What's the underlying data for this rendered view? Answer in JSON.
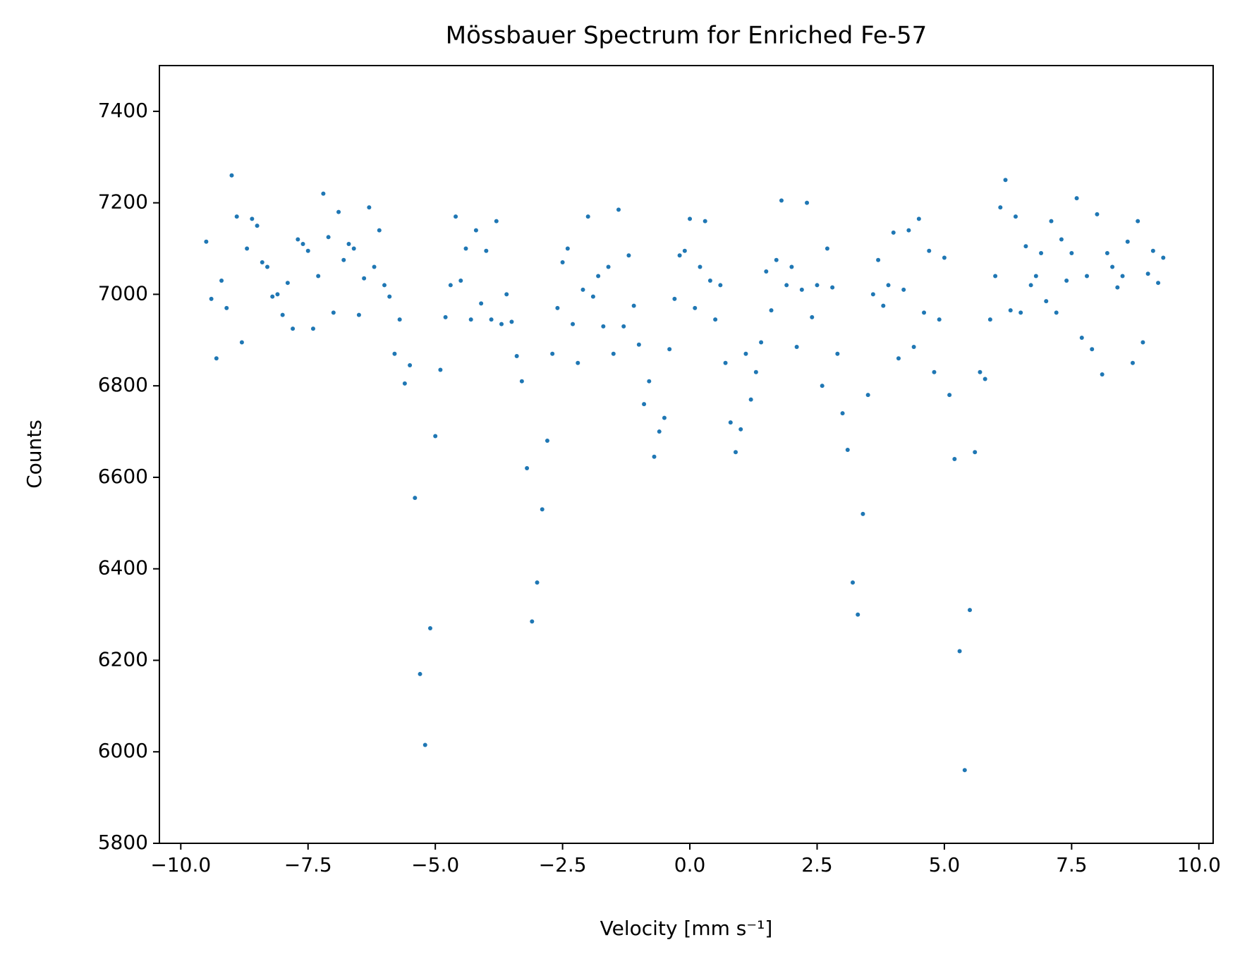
{
  "chart_data": {
    "type": "scatter",
    "title": "Mössbauer Spectrum for Enriched Fe-57",
    "x_label": "Velocity [mm s⁻¹]",
    "y_label": "Counts",
    "color": "#1f77b4",
    "xlim": [
      -10.42,
      10.28
    ],
    "ylim": [
      5800,
      7500
    ],
    "xticks": [
      {
        "value": -10,
        "label": "−10.0"
      },
      {
        "value": -7.5,
        "label": "−7.5"
      },
      {
        "value": -5,
        "label": "−5.0"
      },
      {
        "value": -2.5,
        "label": "−2.5"
      },
      {
        "value": 0,
        "label": "0.0"
      },
      {
        "value": 2.5,
        "label": "2.5"
      },
      {
        "value": 5,
        "label": "5.0"
      },
      {
        "value": 7.5,
        "label": "7.5"
      },
      {
        "value": 10,
        "label": "10.0"
      }
    ],
    "yticks": [
      5800,
      6000,
      6200,
      6400,
      6600,
      6800,
      7000,
      7200,
      7400
    ],
    "x": [
      -9.5,
      -9.4,
      -9.3,
      -9.2,
      -9.1,
      -9.0,
      -8.9,
      -8.8,
      -8.7,
      -8.6,
      -8.5,
      -8.4,
      -8.3,
      -8.2,
      -8.1,
      -8.0,
      -7.9,
      -7.8,
      -7.7,
      -7.6,
      -7.5,
      -7.4,
      -7.3,
      -7.2,
      -7.1,
      -7.0,
      -6.9,
      -6.8,
      -6.7,
      -6.6,
      -6.5,
      -6.4,
      -6.3,
      -6.2,
      -6.1,
      -6.0,
      -5.9,
      -5.8,
      -5.7,
      -5.6,
      -5.5,
      -5.4,
      -5.3,
      -5.2,
      -5.1,
      -5.0,
      -4.9,
      -4.8,
      -4.7,
      -4.6,
      -4.5,
      -4.4,
      -4.3,
      -4.2,
      -4.1,
      -4.0,
      -3.9,
      -3.8,
      -3.7,
      -3.6,
      -3.5,
      -3.4,
      -3.3,
      -3.2,
      -3.1,
      -3.0,
      -2.9,
      -2.8,
      -2.7,
      -2.6,
      -2.5,
      -2.4,
      -2.3,
      -2.2,
      -2.1,
      -2.0,
      -1.9,
      -1.8,
      -1.7,
      -1.6,
      -1.5,
      -1.4,
      -1.3,
      -1.2,
      -1.1,
      -1.0,
      -0.9,
      -0.8,
      -0.7,
      -0.6,
      -0.5,
      -0.4,
      -0.3,
      -0.2,
      -0.1,
      0.0,
      0.1,
      0.2,
      0.3,
      0.4,
      0.5,
      0.6,
      0.7,
      0.8,
      0.9,
      1.0,
      1.1,
      1.2,
      1.3,
      1.4,
      1.5,
      1.6,
      1.7,
      1.8,
      1.9,
      2.0,
      2.1,
      2.2,
      2.3,
      2.4,
      2.5,
      2.6,
      2.7,
      2.8,
      2.9,
      3.0,
      3.1,
      3.2,
      3.3,
      3.4,
      3.5,
      3.6,
      3.7,
      3.8,
      3.9,
      4.0,
      4.1,
      4.2,
      4.3,
      4.4,
      4.5,
      4.6,
      4.7,
      4.8,
      4.9,
      5.0,
      5.1,
      5.2,
      5.3,
      5.4,
      5.5,
      5.6,
      5.7,
      5.8,
      5.9,
      6.0,
      6.1,
      6.2,
      6.3,
      6.4,
      6.5,
      6.6,
      6.7,
      6.8,
      6.9,
      7.0,
      7.1,
      7.2,
      7.3,
      7.4,
      7.5,
      7.6,
      7.7,
      7.8,
      7.9,
      8.0,
      8.1,
      8.2,
      8.3,
      8.4,
      8.5,
      8.6,
      8.7,
      8.8,
      8.9,
      9.0,
      9.1,
      9.2,
      9.3
    ],
    "values": [
      7115,
      6990,
      6860,
      7030,
      6970,
      7260,
      7170,
      6895,
      7100,
      7165,
      7150,
      7070,
      7060,
      6995,
      7000,
      6955,
      7025,
      6925,
      7120,
      7110,
      7095,
      6925,
      7040,
      7220,
      7125,
      6960,
      7180,
      7075,
      7110,
      7100,
      6955,
      7035,
      7190,
      7060,
      7140,
      7020,
      6995,
      6870,
      6945,
      6805,
      6845,
      6555,
      6170,
      6015,
      6270,
      6690,
      6835,
      6950,
      7020,
      7170,
      7030,
      7100,
      6945,
      7140,
      6980,
      7095,
      6945,
      7160,
      6935,
      7000,
      6940,
      6865,
      6810,
      6620,
      6285,
      6370,
      6530,
      6680,
      6870,
      6970,
      7070,
      7100,
      6935,
      6850,
      7010,
      7170,
      6995,
      7040,
      6930,
      7060,
      6870,
      7185,
      6930,
      7085,
      6975,
      6890,
      6760,
      6810,
      6645,
      6700,
      6730,
      6880,
      6990,
      7085,
      7095,
      7165,
      6970,
      7060,
      7160,
      7030,
      6945,
      7020,
      6850,
      6720,
      6655,
      6705,
      6870,
      6770,
      6830,
      6895,
      7050,
      6965,
      7075,
      7205,
      7020,
      7060,
      6885,
      7010,
      7200,
      6950,
      7020,
      6800,
      7100,
      7015,
      6870,
      6740,
      6660,
      6370,
      6300,
      6520,
      6780,
      7000,
      7075,
      6975,
      7020,
      7135,
      6860,
      7010,
      7140,
      6885,
      7165,
      6960,
      7095,
      6830,
      6945,
      7080,
      6780,
      6640,
      6220,
      5960,
      6310,
      6655,
      6830,
      6815,
      6945,
      7040,
      7190,
      7250,
      6965,
      7170,
      6960,
      7105,
      7020,
      7040,
      7090,
      6985,
      7160,
      6960,
      7120,
      7030,
      7090,
      7210,
      6905,
      7040,
      6880,
      7175,
      6825,
      7090,
      7060,
      7015,
      7040,
      7115,
      6850,
      7160,
      6895,
      7045,
      7095,
      7025,
      7080
    ]
  }
}
